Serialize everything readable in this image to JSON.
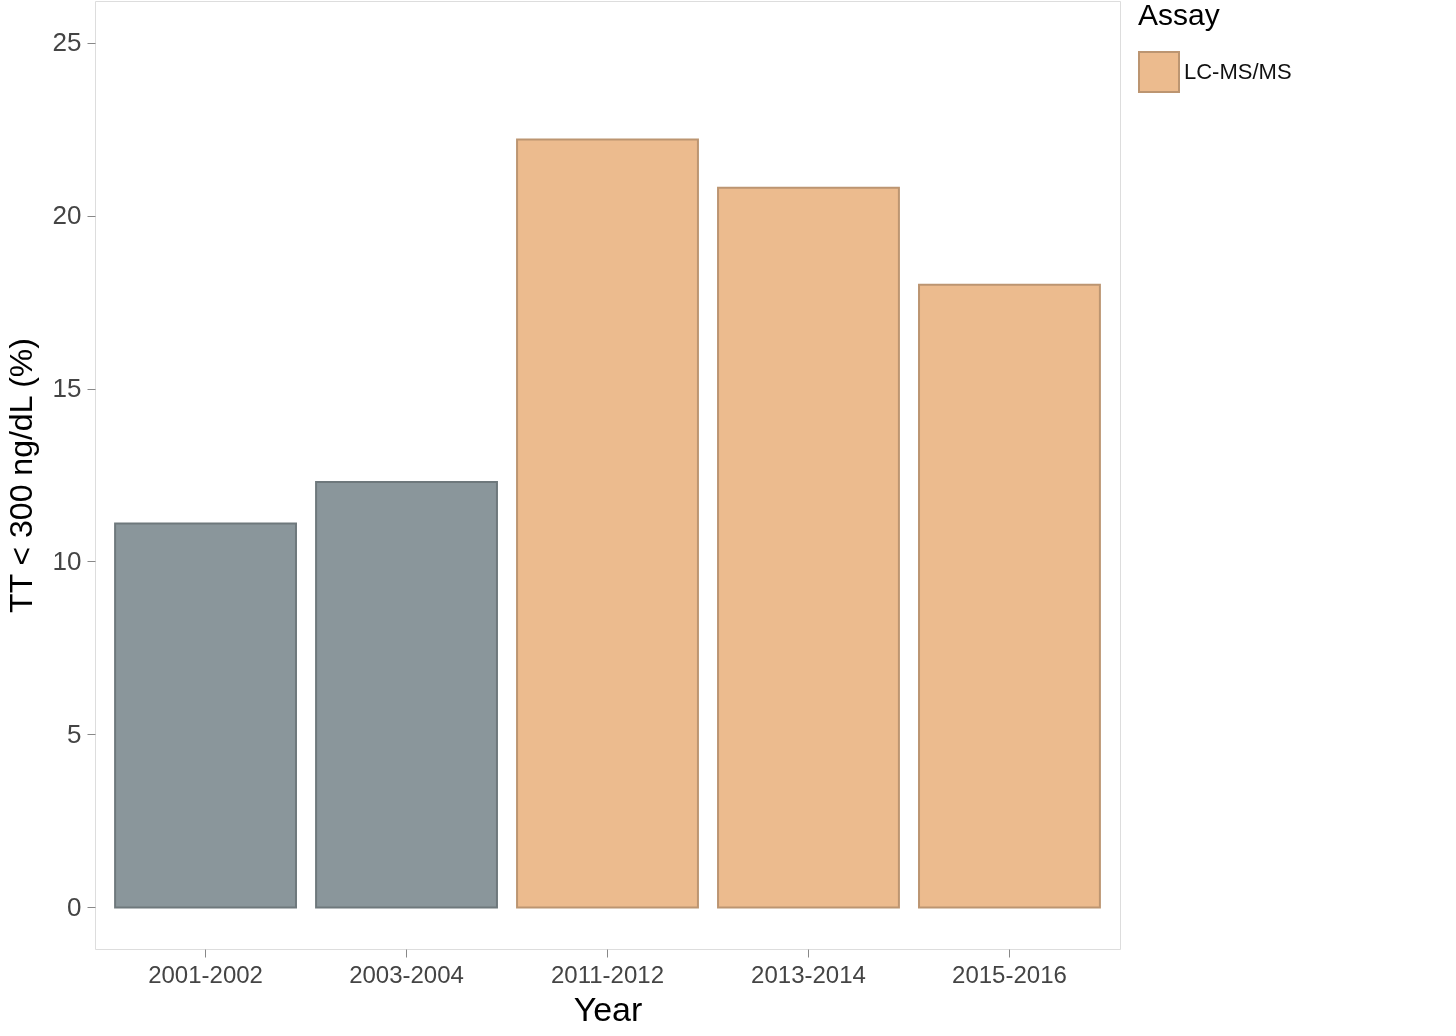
{
  "chart_data": {
    "type": "bar",
    "xlabel": "Year",
    "ylabel": "TT < 300 ng/dL (%)",
    "legend_title": "Assay",
    "categories": [
      "2001-2002",
      "2003-2004",
      "2011-2012",
      "2013-2014",
      "2015-2016"
    ],
    "series": [
      {
        "color": "#8a969b",
        "values": [
          11.1,
          12.3,
          null,
          null,
          null
        ]
      },
      {
        "name": "LC-MS/MS",
        "color": "#ecbb8e",
        "values": [
          null,
          null,
          22.2,
          20.8,
          18.0
        ]
      }
    ],
    "ylim": [
      -1.2,
      26.2
    ],
    "yticks": [
      0,
      5,
      10,
      15,
      20,
      25
    ],
    "grid": false,
    "legend": "right"
  }
}
